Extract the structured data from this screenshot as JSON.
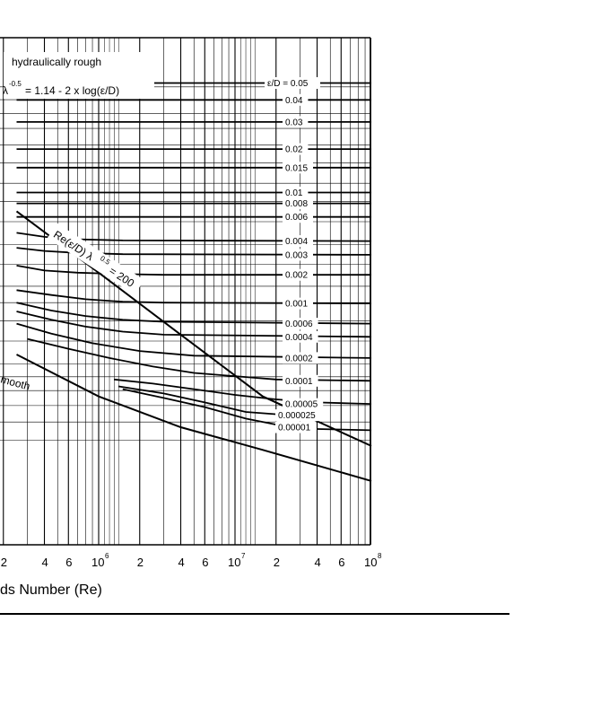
{
  "chart_data": {
    "type": "line",
    "title": "",
    "xlabel": "ds Number (Re)",
    "x_scale": "log",
    "xlim": [
      250000,
      100000000
    ],
    "y_scale": "log",
    "ylim": [
      0.0085,
      0.075
    ],
    "grid": true,
    "x_tick_labels": [
      {
        "x": 200000,
        "label": "2",
        "exp": ""
      },
      {
        "x": 400000,
        "label": "4",
        "exp": ""
      },
      {
        "x": 600000,
        "label": "6",
        "exp": ""
      },
      {
        "x": 1000000,
        "label": "10",
        "exp": "6"
      },
      {
        "x": 2000000,
        "label": "2",
        "exp": ""
      },
      {
        "x": 4000000,
        "label": "4",
        "exp": ""
      },
      {
        "x": 6000000,
        "label": "6",
        "exp": ""
      },
      {
        "x": 10000000,
        "label": "10",
        "exp": "7"
      },
      {
        "x": 20000000,
        "label": "2",
        "exp": ""
      },
      {
        "x": 40000000,
        "label": "4",
        "exp": ""
      },
      {
        "x": 60000000,
        "label": "6",
        "exp": ""
      },
      {
        "x": 100000000,
        "label": "10",
        "exp": "8"
      }
    ],
    "roughness_labels": [
      "ε/D = 0.05",
      "0.04",
      "0.03",
      "0.02",
      "0.015",
      "0.01",
      "0.008",
      "0.006",
      "0.004",
      "0.003",
      "0.002",
      "0.001",
      "0.0006",
      "0.0004",
      "0.0002",
      "0.0001",
      "0.00005",
      "0.000025",
      "0.00001"
    ],
    "series": [
      {
        "name": "0.05",
        "x": [
          250000,
          100000000
        ],
        "y": [
          0.0716,
          0.0716
        ]
      },
      {
        "name": "0.04",
        "x": [
          250000,
          100000000
        ],
        "y": [
          0.0649,
          0.0649
        ]
      },
      {
        "name": "0.03",
        "x": [
          250000,
          100000000
        ],
        "y": [
          0.0571,
          0.0571
        ]
      },
      {
        "name": "0.02",
        "x": [
          250000,
          100000000
        ],
        "y": [
          0.0488,
          0.0488
        ]
      },
      {
        "name": "0.015",
        "x": [
          250000,
          100000000
        ],
        "y": [
          0.0438,
          0.0438
        ]
      },
      {
        "name": "0.01",
        "x": [
          250000,
          100000000
        ],
        "y": [
          0.0379,
          0.0379
        ]
      },
      {
        "name": "0.008",
        "x": [
          250000,
          100000000
        ],
        "y": [
          0.0356,
          0.0356
        ]
      },
      {
        "name": "0.006",
        "x": [
          250000,
          100000000
        ],
        "y": [
          0.0329,
          0.0329
        ]
      },
      {
        "name": "0.004",
        "x": [
          250000,
          400000,
          700000,
          1500000,
          100000000
        ],
        "y": [
          0.03,
          0.0293,
          0.0289,
          0.0287,
          0.0286
        ]
      },
      {
        "name": "0.003",
        "x": [
          250000,
          400000,
          700000,
          1500000,
          100000000
        ],
        "y": [
          0.0275,
          0.027,
          0.0267,
          0.0265,
          0.0264
        ]
      },
      {
        "name": "0.002",
        "x": [
          250000,
          400000,
          700000,
          1500000,
          3000000,
          100000000
        ],
        "y": [
          0.0248,
          0.0241,
          0.0238,
          0.0236,
          0.0235,
          0.0235
        ]
      },
      {
        "name": "0.001",
        "x": [
          250000,
          450000,
          800000,
          1500000,
          3000000,
          100000000
        ],
        "y": [
          0.0215,
          0.0209,
          0.0204,
          0.0201,
          0.02,
          0.0199
        ]
      },
      {
        "name": "0.0006",
        "x": [
          250000,
          450000,
          800000,
          1500000,
          3000000,
          100000000
        ],
        "y": [
          0.02,
          0.0191,
          0.0185,
          0.0181,
          0.0179,
          0.0177
        ]
      },
      {
        "name": "0.0004",
        "x": [
          250000,
          450000,
          800000,
          1500000,
          3000000,
          100000000
        ],
        "y": [
          0.019,
          0.0181,
          0.0174,
          0.0169,
          0.0166,
          0.0164
        ]
      },
      {
        "name": "0.0002",
        "x": [
          250000,
          450000,
          900000,
          2000000,
          5000000,
          100000000
        ],
        "y": [
          0.0177,
          0.0167,
          0.0158,
          0.0151,
          0.0147,
          0.0145
        ]
      },
      {
        "name": "0.0001",
        "x": [
          300000,
          600000,
          1200000,
          2500000,
          5000000,
          20000000,
          100000000
        ],
        "y": [
          0.0162,
          0.0153,
          0.0145,
          0.0138,
          0.0133,
          0.0128,
          0.0127
        ]
      },
      {
        "name": "0.00005",
        "x": [
          1300000,
          2500000,
          5000000,
          10000000,
          20000000,
          40000000,
          100000000
        ],
        "y": [
          0.0128,
          0.0125,
          0.0121,
          0.0117,
          0.0114,
          0.0112,
          0.0111
        ]
      },
      {
        "name": "0.000025",
        "x": [
          1400000,
          3000000,
          6000000,
          12000000,
          25000000
        ],
        "y": [
          0.0123,
          0.0118,
          0.0112,
          0.0106,
          0.0104
        ]
      },
      {
        "name": "0.00001",
        "x": [
          1500000,
          3000000,
          6000000,
          12000000,
          25000000
        ],
        "y": [
          0.0121,
          0.0115,
          0.0109,
          0.0102,
          0.0097
        ]
      },
      {
        "name": "0.00001 (right)",
        "x": [
          40000000,
          100000000
        ],
        "y": [
          0.0096,
          0.00953
        ]
      },
      {
        "name": "smooth",
        "x": [
          250000,
          1000000,
          4000000,
          16000000,
          100000000
        ],
        "y": [
          0.0148,
          0.0116,
          0.0097,
          0.0085,
          0.0071
        ]
      },
      {
        "name": "Re(ε/D)λ^0.5 = 200",
        "x": [
          250000,
          1000000,
          4000000,
          16000000,
          100000000
        ],
        "y": [
          0.034,
          0.0238,
          0.0166,
          0.0116,
          0.0087
        ]
      }
    ],
    "annotations": {
      "rough_label": "hydraulically rough",
      "formula_lambda": "λ",
      "formula_exp": "-0.5",
      "formula_rest": "= 1.14 - 2 x log(ε/D)",
      "smooth_label": "mooth",
      "boundary_label": "Re(ε/D) λ",
      "boundary_exp": "0.5",
      "boundary_eq": "= 200"
    }
  }
}
